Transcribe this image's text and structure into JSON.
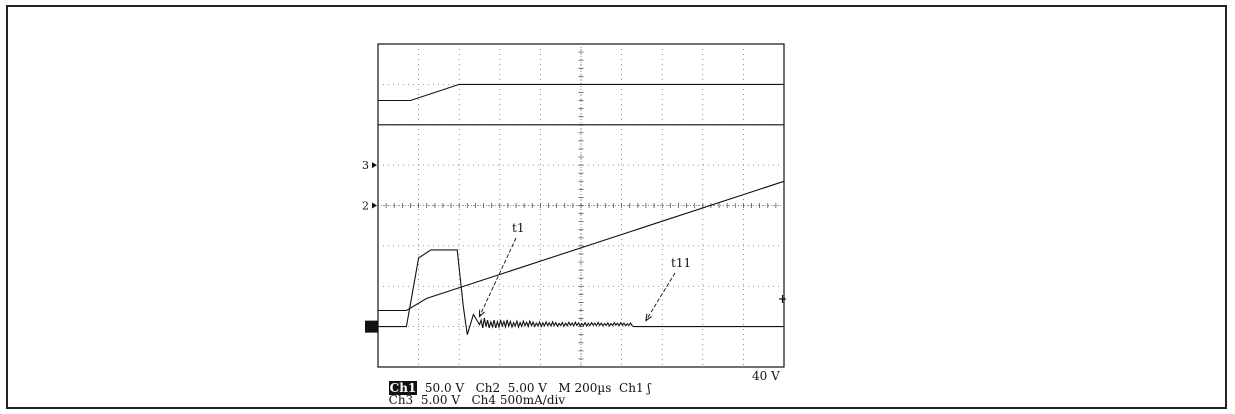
{
  "chart_data": {
    "type": "line",
    "title": "",
    "grid": true,
    "x_range_div": [
      0,
      10
    ],
    "y_range_div": [
      -4,
      4
    ],
    "channel_markers": [
      {
        "label": "3",
        "y_div": 1.0
      },
      {
        "label": "2",
        "y_div": 0.0
      },
      {
        "label": "1",
        "y_div": -3.0
      }
    ],
    "annotations": [
      {
        "label": "t1",
        "x_div": 2.4,
        "y_div": -2.9
      },
      {
        "label": "t11",
        "x_div": 6.5,
        "y_div": -3.0
      }
    ],
    "series": [
      {
        "channel": "Ch1",
        "points": [
          [
            0,
            2.6
          ],
          [
            0.8,
            2.6
          ],
          [
            2.0,
            3.0
          ],
          [
            10,
            3.0
          ]
        ]
      },
      {
        "channel": "Ch4",
        "points": [
          [
            0,
            2.0
          ],
          [
            10,
            2.0
          ]
        ]
      },
      {
        "channel": "Ch2",
        "points": [
          [
            0,
            -2.6
          ],
          [
            0.7,
            -2.6
          ],
          [
            1.2,
            -2.3
          ],
          [
            10,
            0.6
          ]
        ]
      },
      {
        "channel": "Ch3",
        "points": [
          [
            0,
            -3.0
          ],
          [
            0.7,
            -3.0
          ],
          [
            1.0,
            -1.3
          ],
          [
            1.3,
            -1.1
          ],
          [
            1.95,
            -1.1
          ],
          [
            2.1,
            -2.5
          ],
          [
            2.2,
            -3.2
          ],
          [
            2.35,
            -2.7
          ],
          [
            2.5,
            -2.95
          ],
          [
            6.3,
            -3.0
          ],
          [
            10,
            -3.0
          ]
        ]
      }
    ],
    "footer": {
      "row1": {
        "ch1": "Ch1",
        "ch1_scale": "50.0 V",
        "ch2": "Ch2",
        "ch2_scale": "5.00 V",
        "mode": "M",
        "timebase": "200µs",
        "trig_ch": "Ch1",
        "trig_slope": "ʃ",
        "trig_level": "40 V"
      },
      "row2": {
        "ch3": "Ch3",
        "ch3_scale": "5.00 V",
        "ch4": "Ch4",
        "ch4_scale": "500mA/div"
      }
    }
  }
}
